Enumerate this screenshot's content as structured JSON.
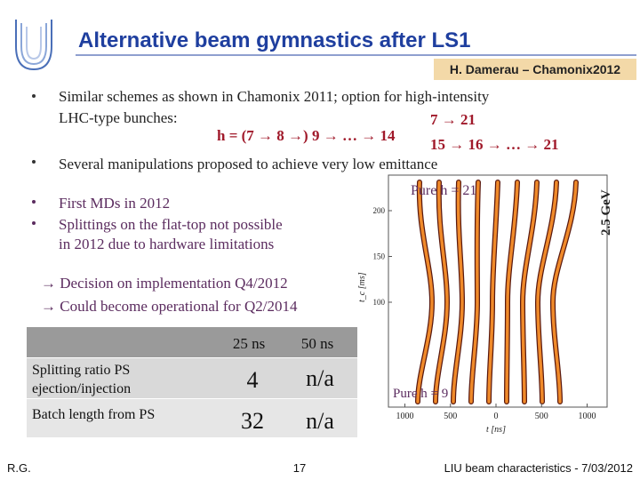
{
  "header": {
    "title": "Alternative beam gymnastics after LS1",
    "author": "H. Damerau – Chamonix2012"
  },
  "bullets": [
    "Similar schemes as shown in Chamonix 2011; option for high-intensity",
    "LHC-type bunches:",
    "Several manipulations proposed to achieve very low emittance",
    "First MDs in 2012",
    "Splittings on the flat-top not possible",
    "in 2012 due to hardware limitations"
  ],
  "formula": {
    "main": "h = (7 → 8 →) 9 → … → 14",
    "upper": "7 → 21",
    "lower": "15 → 16 → … → 21"
  },
  "conclusions": [
    "→ Decision on implementation Q4/2012",
    "→ Could become  operational for Q2/2014"
  ],
  "table": {
    "columns": [
      "25 ns",
      "50 ns"
    ],
    "rows": [
      [
        "Splitting ratio PS",
        "ejection/injection",
        4,
        "n/a"
      ],
      [
        "Batch length from PS",
        32,
        "n/a"
      ]
    ]
  },
  "figure": {
    "label_top": "Pure h = 21",
    "label_bottom": "Pure h = 9",
    "energy": "2.5 GeV",
    "y_axis_label": "t_c [ms]",
    "x_axis_label": "t [ns]",
    "yticks": [
      200,
      150,
      100
    ],
    "xticks": [
      {
        "value": -1000,
        "label": "1000"
      },
      {
        "value": -500,
        "label": "500"
      },
      0,
      500,
      {
        "value": 1000,
        "label": "1000"
      }
    ]
  },
  "footer": {
    "left": "R.G.",
    "page": "17",
    "right": "LIU beam characteristics - 7/03/2012"
  }
}
